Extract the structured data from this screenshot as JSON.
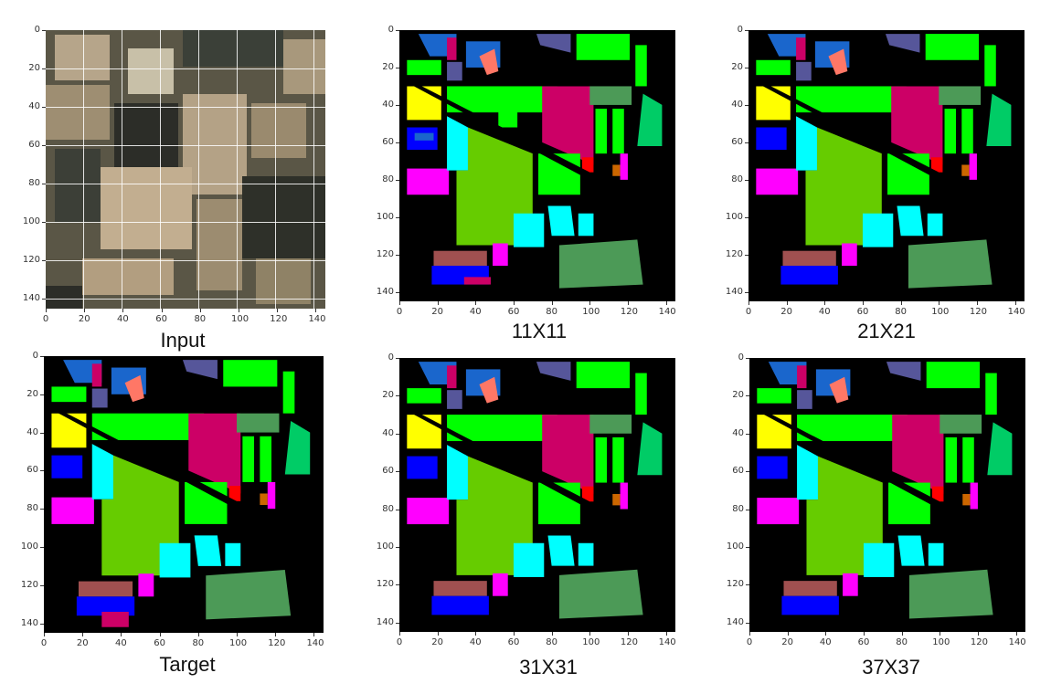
{
  "panels": [
    {
      "caption": "Input",
      "kind": "satellite"
    },
    {
      "caption": "11X11",
      "kind": "segmap"
    },
    {
      "caption": "21X21",
      "kind": "segmap"
    },
    {
      "caption": "Target",
      "kind": "segmap"
    },
    {
      "caption": "31X31",
      "kind": "segmap"
    },
    {
      "caption": "37X37",
      "kind": "segmap"
    }
  ],
  "axis": {
    "x_ticks": [
      "0",
      "20",
      "40",
      "60",
      "80",
      "100",
      "120",
      "140"
    ],
    "y_ticks": [
      "0",
      "20",
      "40",
      "60",
      "80",
      "100",
      "120",
      "140"
    ]
  },
  "class_colors": {
    "lime_green": "#66cc00",
    "bright_green": "#00ff00",
    "crimson": "#cc0066",
    "cyan": "#00ffff",
    "sea_green": "#4c9a57",
    "blue": "#0000ff",
    "royal_blue": "#1a66cc",
    "yellow": "#ffff00",
    "magenta": "#ff00ff",
    "salmon": "#ff7766",
    "slate": "#56569a",
    "brown_red": "#a05050",
    "jungle": "#00cc66",
    "orange": "#cc6600",
    "red": "#ff0000",
    "background": "#000000"
  }
}
